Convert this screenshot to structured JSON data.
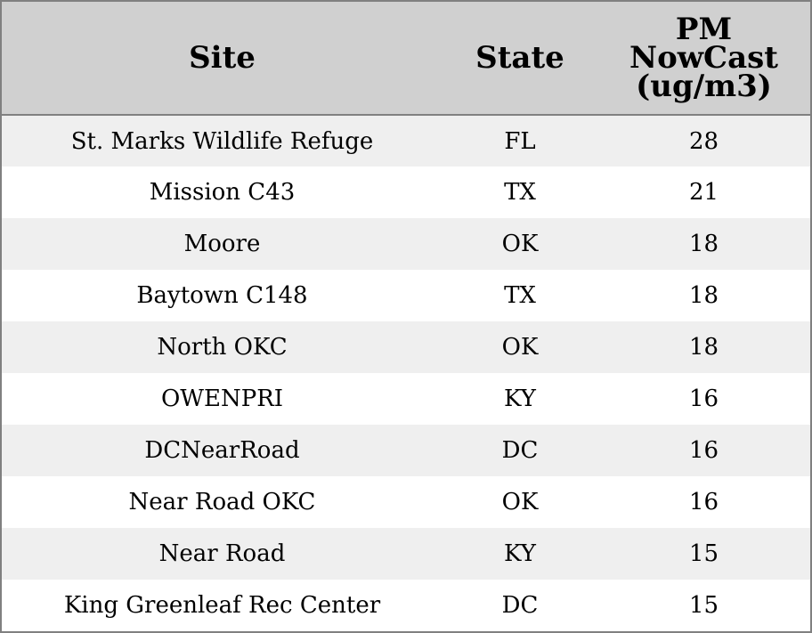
{
  "chart_data": {
    "type": "table",
    "columns": [
      "Site",
      "State",
      "PM NowCast (ug/m3)"
    ],
    "header_lines": [
      [
        "Site"
      ],
      [
        "State"
      ],
      [
        "PM",
        "NowCast",
        "(ug/m3)"
      ]
    ],
    "rows": [
      {
        "site": "St. Marks Wildlife Refuge",
        "state": "FL",
        "pm": 28
      },
      {
        "site": "Mission C43",
        "state": "TX",
        "pm": 21
      },
      {
        "site": "Moore",
        "state": "OK",
        "pm": 18
      },
      {
        "site": "Baytown C148",
        "state": "TX",
        "pm": 18
      },
      {
        "site": "North OKC",
        "state": "OK",
        "pm": 18
      },
      {
        "site": "OWENPRI",
        "state": "KY",
        "pm": 16
      },
      {
        "site": "DCNearRoad",
        "state": "DC",
        "pm": 16
      },
      {
        "site": "Near Road OKC",
        "state": "OK",
        "pm": 16
      },
      {
        "site": "Near Road",
        "state": "KY",
        "pm": 15
      },
      {
        "site": "King Greenleaf Rec Center",
        "state": "DC",
        "pm": 15
      }
    ]
  },
  "colors": {
    "header_bg": "#d0d0d0",
    "row_alt_bg": "#efefef",
    "row_bg": "#ffffff",
    "border": "#808080"
  }
}
